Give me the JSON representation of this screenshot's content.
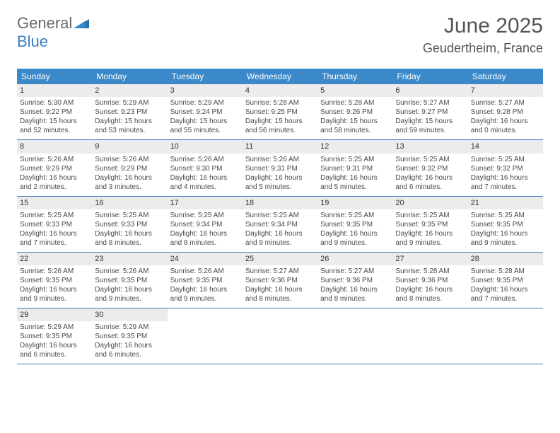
{
  "logo": {
    "part1": "General",
    "part2": "Blue"
  },
  "title": "June 2025",
  "location": "Geudertheim, France",
  "colors": {
    "header_bg": "#3b89c9",
    "daynum_bg": "#ececec",
    "rule": "#3b7fc4",
    "text": "#4a4a4a",
    "logo_gray": "#6a6a6a",
    "logo_blue": "#3b7fc4"
  },
  "dow": [
    "Sunday",
    "Monday",
    "Tuesday",
    "Wednesday",
    "Thursday",
    "Friday",
    "Saturday"
  ],
  "weeks": [
    [
      {
        "n": "1",
        "sr": "5:30 AM",
        "ss": "9:22 PM",
        "dl": "15 hours and 52 minutes."
      },
      {
        "n": "2",
        "sr": "5:29 AM",
        "ss": "9:23 PM",
        "dl": "15 hours and 53 minutes."
      },
      {
        "n": "3",
        "sr": "5:29 AM",
        "ss": "9:24 PM",
        "dl": "15 hours and 55 minutes."
      },
      {
        "n": "4",
        "sr": "5:28 AM",
        "ss": "9:25 PM",
        "dl": "15 hours and 56 minutes."
      },
      {
        "n": "5",
        "sr": "5:28 AM",
        "ss": "9:26 PM",
        "dl": "15 hours and 58 minutes."
      },
      {
        "n": "6",
        "sr": "5:27 AM",
        "ss": "9:27 PM",
        "dl": "15 hours and 59 minutes."
      },
      {
        "n": "7",
        "sr": "5:27 AM",
        "ss": "9:28 PM",
        "dl": "16 hours and 0 minutes."
      }
    ],
    [
      {
        "n": "8",
        "sr": "5:26 AM",
        "ss": "9:29 PM",
        "dl": "16 hours and 2 minutes."
      },
      {
        "n": "9",
        "sr": "5:26 AM",
        "ss": "9:29 PM",
        "dl": "16 hours and 3 minutes."
      },
      {
        "n": "10",
        "sr": "5:26 AM",
        "ss": "9:30 PM",
        "dl": "16 hours and 4 minutes."
      },
      {
        "n": "11",
        "sr": "5:26 AM",
        "ss": "9:31 PM",
        "dl": "16 hours and 5 minutes."
      },
      {
        "n": "12",
        "sr": "5:25 AM",
        "ss": "9:31 PM",
        "dl": "16 hours and 5 minutes."
      },
      {
        "n": "13",
        "sr": "5:25 AM",
        "ss": "9:32 PM",
        "dl": "16 hours and 6 minutes."
      },
      {
        "n": "14",
        "sr": "5:25 AM",
        "ss": "9:32 PM",
        "dl": "16 hours and 7 minutes."
      }
    ],
    [
      {
        "n": "15",
        "sr": "5:25 AM",
        "ss": "9:33 PM",
        "dl": "16 hours and 7 minutes."
      },
      {
        "n": "16",
        "sr": "5:25 AM",
        "ss": "9:33 PM",
        "dl": "16 hours and 8 minutes."
      },
      {
        "n": "17",
        "sr": "5:25 AM",
        "ss": "9:34 PM",
        "dl": "16 hours and 8 minutes."
      },
      {
        "n": "18",
        "sr": "5:25 AM",
        "ss": "9:34 PM",
        "dl": "16 hours and 9 minutes."
      },
      {
        "n": "19",
        "sr": "5:25 AM",
        "ss": "9:35 PM",
        "dl": "16 hours and 9 minutes."
      },
      {
        "n": "20",
        "sr": "5:25 AM",
        "ss": "9:35 PM",
        "dl": "16 hours and 9 minutes."
      },
      {
        "n": "21",
        "sr": "5:25 AM",
        "ss": "9:35 PM",
        "dl": "16 hours and 9 minutes."
      }
    ],
    [
      {
        "n": "22",
        "sr": "5:26 AM",
        "ss": "9:35 PM",
        "dl": "16 hours and 9 minutes."
      },
      {
        "n": "23",
        "sr": "5:26 AM",
        "ss": "9:35 PM",
        "dl": "16 hours and 9 minutes."
      },
      {
        "n": "24",
        "sr": "5:26 AM",
        "ss": "9:35 PM",
        "dl": "16 hours and 9 minutes."
      },
      {
        "n": "25",
        "sr": "5:27 AM",
        "ss": "9:36 PM",
        "dl": "16 hours and 8 minutes."
      },
      {
        "n": "26",
        "sr": "5:27 AM",
        "ss": "9:36 PM",
        "dl": "16 hours and 8 minutes."
      },
      {
        "n": "27",
        "sr": "5:28 AM",
        "ss": "9:36 PM",
        "dl": "16 hours and 8 minutes."
      },
      {
        "n": "28",
        "sr": "5:28 AM",
        "ss": "9:35 PM",
        "dl": "16 hours and 7 minutes."
      }
    ],
    [
      {
        "n": "29",
        "sr": "5:29 AM",
        "ss": "9:35 PM",
        "dl": "16 hours and 6 minutes."
      },
      {
        "n": "30",
        "sr": "5:29 AM",
        "ss": "9:35 PM",
        "dl": "16 hours and 6 minutes."
      },
      null,
      null,
      null,
      null,
      null
    ]
  ],
  "labels": {
    "sunrise": "Sunrise:",
    "sunset": "Sunset:",
    "daylight": "Daylight:"
  }
}
